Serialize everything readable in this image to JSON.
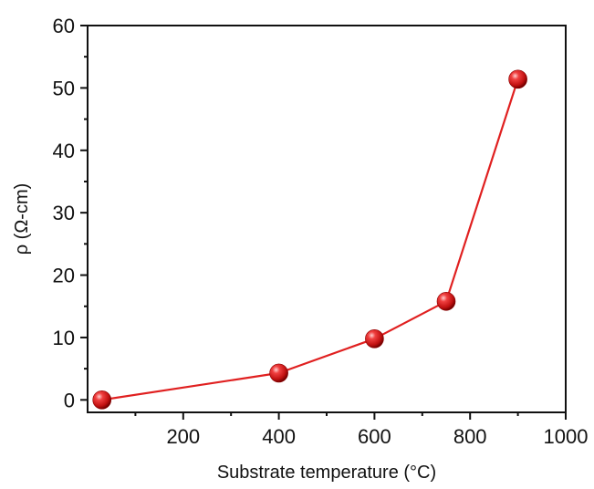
{
  "chart_data": {
    "type": "line",
    "title": "",
    "xlabel": "Substrate temperature (°C)",
    "ylabel": "ρ (Ω-cm)",
    "xlim": [
      0,
      1000
    ],
    "ylim": [
      -2,
      60
    ],
    "xticks": [
      200,
      400,
      600,
      800,
      1000
    ],
    "xticks_minor": [
      100,
      300,
      500,
      700,
      900
    ],
    "yticks": [
      0,
      10,
      20,
      30,
      40,
      50,
      60
    ],
    "yticks_minor": [
      5,
      15,
      25,
      35,
      45,
      55
    ],
    "grid": false,
    "legend": "none",
    "colors": {
      "line": "#e02020",
      "marker": "#d01818",
      "marker_highlight": "#ffd0d0",
      "axis": "#111111"
    },
    "series": [
      {
        "x": [
          30,
          400,
          600,
          750,
          900
        ],
        "y": [
          0,
          4.3,
          9.8,
          15.8,
          51.4
        ]
      }
    ]
  }
}
